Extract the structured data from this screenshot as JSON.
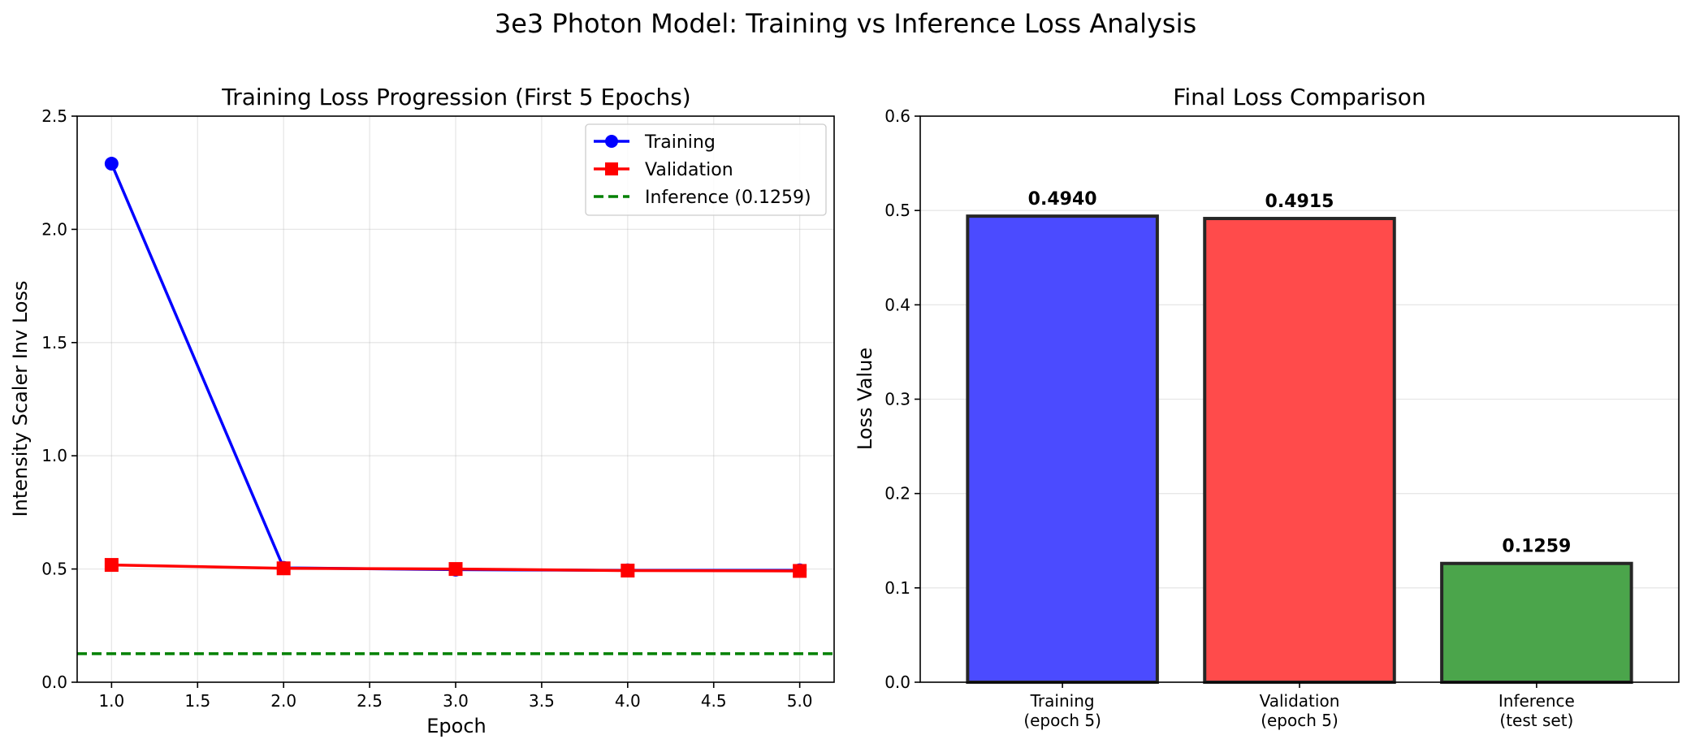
{
  "suptitle": "3e3 Photon Model: Training vs Inference Loss Analysis",
  "chart_data": [
    {
      "type": "line",
      "title": "Training Loss Progression (First 5 Epochs)",
      "xlabel": "Epoch",
      "ylabel": "Intensity Scaler Inv Loss",
      "xlim": [
        0.8,
        5.2
      ],
      "ylim": [
        0,
        2.5
      ],
      "xticks": [
        "1.0",
        "1.5",
        "2.0",
        "2.5",
        "3.0",
        "3.5",
        "4.0",
        "4.5",
        "5.0"
      ],
      "xtick_values": [
        1.0,
        1.5,
        2.0,
        2.5,
        3.0,
        3.5,
        4.0,
        4.5,
        5.0
      ],
      "yticks": [
        "0.0",
        "0.5",
        "1.0",
        "1.5",
        "2.0",
        "2.5"
      ],
      "ytick_values": [
        0.0,
        0.5,
        1.0,
        1.5,
        2.0,
        2.5
      ],
      "grid": true,
      "legend_position": "top-right",
      "x": [
        1,
        2,
        3,
        4,
        5
      ],
      "series": [
        {
          "name": "Training",
          "color": "#0000ff",
          "marker": "circle",
          "values": [
            2.29,
            0.505,
            0.497,
            0.494,
            0.494
          ]
        },
        {
          "name": "Validation",
          "color": "#ff0000",
          "marker": "square",
          "values": [
            0.518,
            0.503,
            0.5,
            0.493,
            0.4915
          ]
        }
      ],
      "hline": {
        "name": "Inference (0.1259)",
        "value": 0.1259,
        "color": "#008000",
        "style": "dashed"
      }
    },
    {
      "type": "bar",
      "title": "Final Loss Comparison",
      "xlabel": "",
      "ylabel": "Loss Value",
      "ylim": [
        0,
        0.6
      ],
      "yticks": [
        "0.0",
        "0.1",
        "0.2",
        "0.3",
        "0.4",
        "0.5",
        "0.6"
      ],
      "ytick_values": [
        0.0,
        0.1,
        0.2,
        0.3,
        0.4,
        0.5,
        0.6
      ],
      "grid": true,
      "categories": [
        [
          "Training",
          "(epoch 5)"
        ],
        [
          "Validation",
          "(epoch 5)"
        ],
        [
          "Inference",
          "(test set)"
        ]
      ],
      "values": [
        0.494,
        0.4915,
        0.1259
      ],
      "value_labels": [
        "0.4940",
        "0.4915",
        "0.1259"
      ],
      "colors": [
        "#4b4bff",
        "#ff4b4b",
        "#4ba54b"
      ]
    }
  ]
}
